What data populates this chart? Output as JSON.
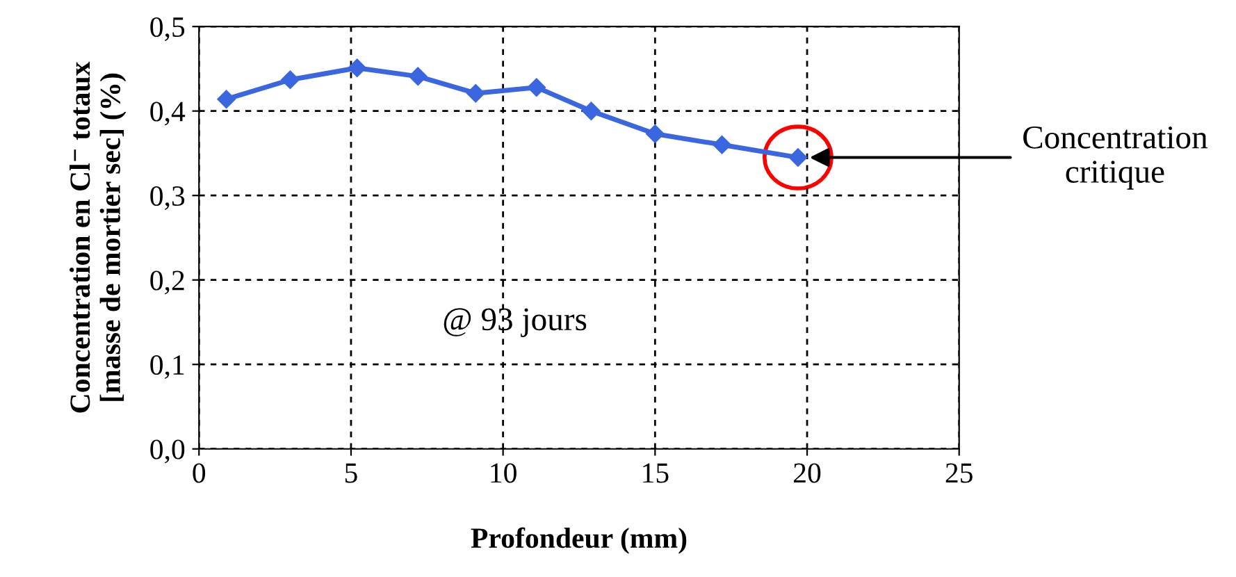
{
  "chart_data": {
    "type": "line",
    "xlabel": "Profondeur (mm)",
    "ylabel": "Concentration en Cl⁻ totaux\n[masse de mortier sec] (%)",
    "x": [
      0.9,
      3.0,
      5.2,
      7.2,
      9.1,
      11.1,
      12.9,
      15.0,
      17.2,
      19.7
    ],
    "series": [
      {
        "color": "#3a66e0",
        "values": [
          0.414,
          0.437,
          0.451,
          0.441,
          0.421,
          0.428,
          0.4,
          0.373,
          0.36,
          0.345
        ]
      }
    ],
    "marker": "diamond",
    "line_style": "solid",
    "grid": true,
    "xlim": [
      0,
      25
    ],
    "xticks": [
      0,
      5,
      10,
      15,
      20,
      25
    ],
    "ylim": [
      0,
      0.5
    ],
    "yticks": [
      {
        "value": 0,
        "label": "0,0"
      },
      {
        "value": 0.1,
        "label": "0,1"
      },
      {
        "value": 0.2,
        "label": "0,2"
      },
      {
        "value": 0.3,
        "label": "0,3"
      },
      {
        "value": 0.4,
        "label": "0,4"
      },
      {
        "value": 0.5,
        "label": "0,5"
      }
    ],
    "annotations": [
      "Concentration\ncritique",
      "@ 93 jours"
    ]
  }
}
